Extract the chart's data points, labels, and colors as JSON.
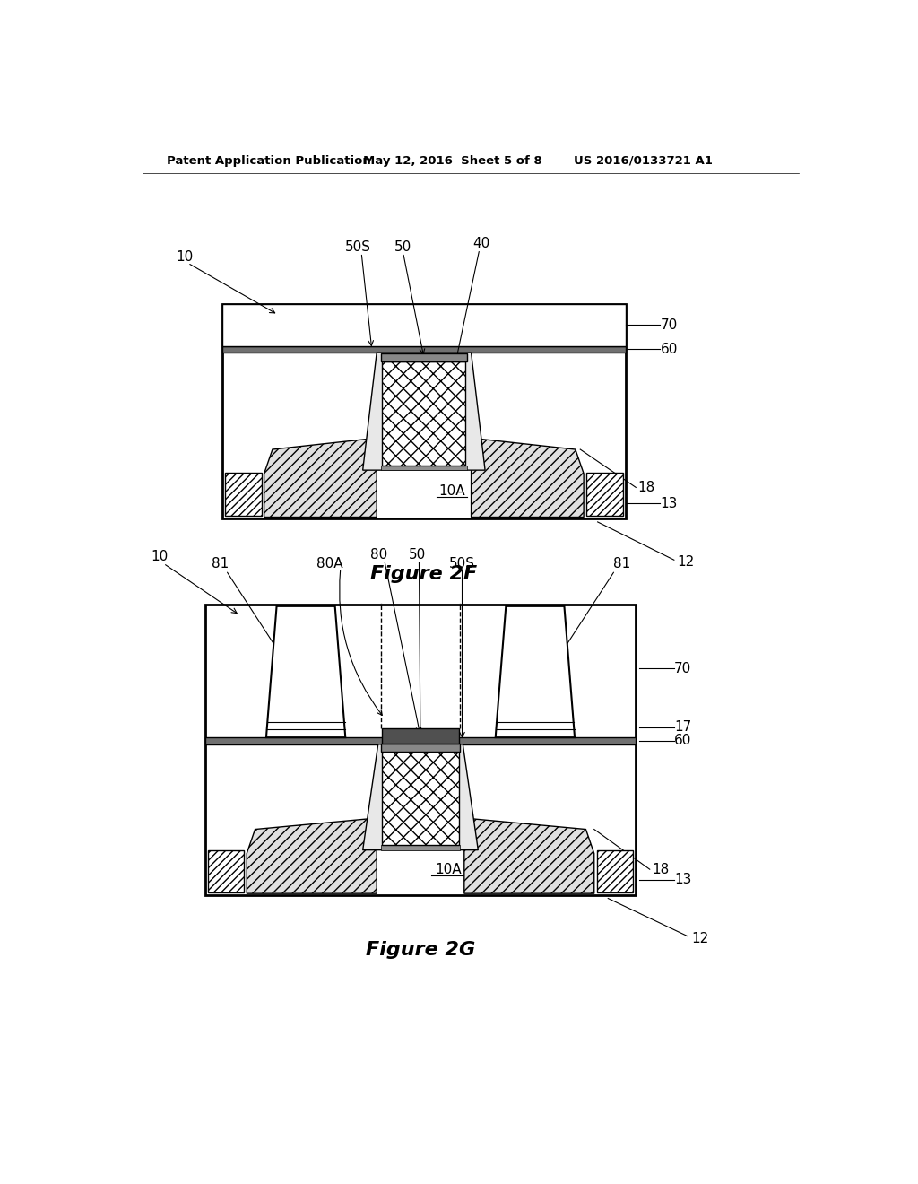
{
  "title_header": "Patent Application Publication",
  "date_header": "May 12, 2016  Sheet 5 of 8",
  "patent_header": "US 2016/0133721 A1",
  "fig2f_label": "Figure 2F",
  "fig2g_label": "Figure 2G",
  "bg_color": "#ffffff",
  "line_color": "#000000"
}
